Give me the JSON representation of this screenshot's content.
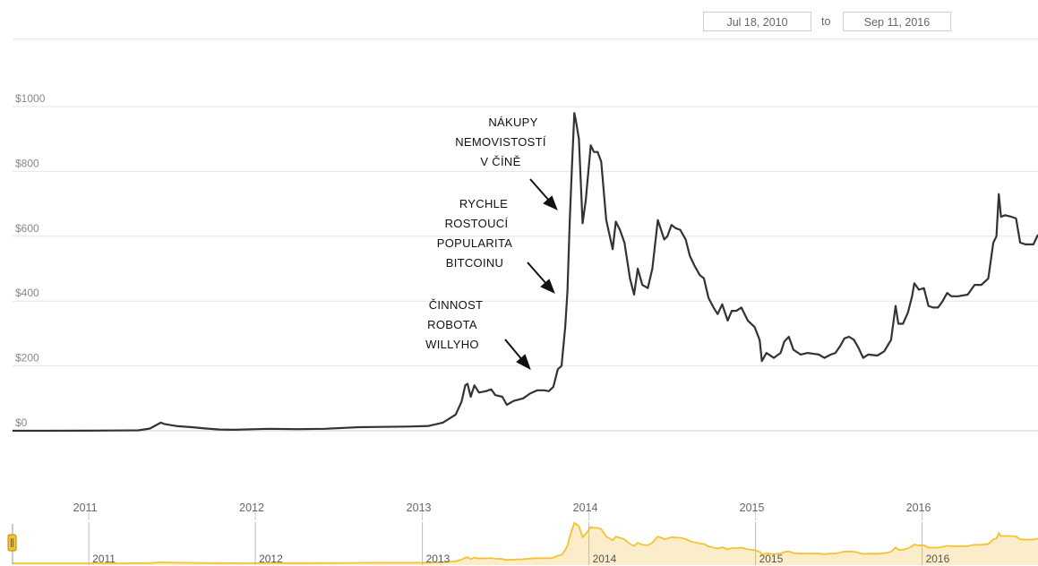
{
  "range": {
    "start": "Jul 18, 2010",
    "to": "to",
    "end": "Sep 11, 2016"
  },
  "colors": {
    "line": "#333333",
    "navigator": "#f5c233",
    "navigator_fill": "#fbedc9",
    "grid": "#e6e6e6",
    "annotation": "#111111"
  },
  "annotations": {
    "china": [
      "NÁKUPY",
      "NEMOVISTOSTÍ",
      "V ČÍNĚ"
    ],
    "popularity": [
      "RYCHLE",
      "ROSTOUCÍ",
      "POPULARITA",
      "BITCOINU"
    ],
    "willy": [
      "ČINNOST",
      "ROBOTA",
      "WILLYHO"
    ]
  },
  "chart_data": {
    "type": "line",
    "title": "",
    "xlabel": "",
    "ylabel": "",
    "ylim": [
      0,
      1000
    ],
    "yticks": [
      "$0",
      "$200",
      "$400",
      "$600",
      "$800",
      "$1000"
    ],
    "yticks_values": [
      0,
      200,
      400,
      600,
      800,
      1000
    ],
    "xticks": [
      "2011",
      "2012",
      "2013",
      "2014",
      "2015",
      "2016"
    ],
    "grid": true,
    "series": [
      {
        "points": [
          [
            "2010-07-18",
            0.1
          ],
          [
            "2010-10-01",
            0.1
          ],
          [
            "2011-01-01",
            0.3
          ],
          [
            "2011-03-01",
            0.9
          ],
          [
            "2011-04-20",
            1.5
          ],
          [
            "2011-05-15",
            7
          ],
          [
            "2011-06-08",
            25
          ],
          [
            "2011-06-15",
            21
          ],
          [
            "2011-07-15",
            14
          ],
          [
            "2011-08-15",
            11
          ],
          [
            "2011-09-15",
            7
          ],
          [
            "2011-10-15",
            4
          ],
          [
            "2011-11-15",
            3
          ],
          [
            "2012-01-01",
            5
          ],
          [
            "2012-02-01",
            6
          ],
          [
            "2012-04-01",
            5
          ],
          [
            "2012-06-01",
            6
          ],
          [
            "2012-08-15",
            11
          ],
          [
            "2012-10-01",
            12
          ],
          [
            "2012-12-01",
            13
          ],
          [
            "2013-01-15",
            15
          ],
          [
            "2013-02-15",
            25
          ],
          [
            "2013-03-15",
            50
          ],
          [
            "2013-03-28",
            90
          ],
          [
            "2013-04-05",
            140
          ],
          [
            "2013-04-10",
            145
          ],
          [
            "2013-04-17",
            105
          ],
          [
            "2013-04-25",
            140
          ],
          [
            "2013-05-05",
            118
          ],
          [
            "2013-05-20",
            122
          ],
          [
            "2013-06-01",
            128
          ],
          [
            "2013-06-10",
            110
          ],
          [
            "2013-06-25",
            105
          ],
          [
            "2013-07-05",
            80
          ],
          [
            "2013-07-20",
            92
          ],
          [
            "2013-08-10",
            100
          ],
          [
            "2013-08-25",
            115
          ],
          [
            "2013-09-10",
            125
          ],
          [
            "2013-09-25",
            125
          ],
          [
            "2013-10-05",
            122
          ],
          [
            "2013-10-15",
            135
          ],
          [
            "2013-10-25",
            190
          ],
          [
            "2013-11-02",
            200
          ],
          [
            "2013-11-10",
            320
          ],
          [
            "2013-11-15",
            430
          ],
          [
            "2013-11-20",
            650
          ],
          [
            "2013-11-25",
            820
          ],
          [
            "2013-11-30",
            980
          ],
          [
            "2013-12-03",
            960
          ],
          [
            "2013-12-10",
            900
          ],
          [
            "2013-12-18",
            640
          ],
          [
            "2013-12-25",
            710
          ],
          [
            "2014-01-05",
            880
          ],
          [
            "2014-01-12",
            860
          ],
          [
            "2014-01-20",
            860
          ],
          [
            "2014-01-28",
            830
          ],
          [
            "2014-02-08",
            650
          ],
          [
            "2014-02-22",
            560
          ],
          [
            "2014-03-01",
            645
          ],
          [
            "2014-03-10",
            620
          ],
          [
            "2014-03-20",
            580
          ],
          [
            "2014-04-01",
            470
          ],
          [
            "2014-04-10",
            420
          ],
          [
            "2014-04-18",
            500
          ],
          [
            "2014-04-28",
            450
          ],
          [
            "2014-05-10",
            440
          ],
          [
            "2014-05-20",
            500
          ],
          [
            "2014-06-01",
            650
          ],
          [
            "2014-06-08",
            620
          ],
          [
            "2014-06-15",
            590
          ],
          [
            "2014-06-22",
            600
          ],
          [
            "2014-07-01",
            635
          ],
          [
            "2014-07-10",
            625
          ],
          [
            "2014-07-20",
            620
          ],
          [
            "2014-08-01",
            590
          ],
          [
            "2014-08-10",
            540
          ],
          [
            "2014-08-20",
            510
          ],
          [
            "2014-09-01",
            480
          ],
          [
            "2014-09-10",
            470
          ],
          [
            "2014-09-20",
            410
          ],
          [
            "2014-10-01",
            380
          ],
          [
            "2014-10-10",
            360
          ],
          [
            "2014-10-20",
            390
          ],
          [
            "2014-11-01",
            340
          ],
          [
            "2014-11-10",
            370
          ],
          [
            "2014-11-20",
            370
          ],
          [
            "2014-12-01",
            380
          ],
          [
            "2014-12-15",
            340
          ],
          [
            "2014-12-30",
            320
          ],
          [
            "2015-01-10",
            280
          ],
          [
            "2015-01-15",
            215
          ],
          [
            "2015-01-25",
            240
          ],
          [
            "2015-02-10",
            225
          ],
          [
            "2015-02-25",
            240
          ],
          [
            "2015-03-05",
            275
          ],
          [
            "2015-03-15",
            290
          ],
          [
            "2015-03-25",
            250
          ],
          [
            "2015-04-10",
            235
          ],
          [
            "2015-04-25",
            240
          ],
          [
            "2015-05-05",
            238
          ],
          [
            "2015-05-20",
            235
          ],
          [
            "2015-06-01",
            225
          ],
          [
            "2015-06-15",
            235
          ],
          [
            "2015-06-25",
            240
          ],
          [
            "2015-07-05",
            260
          ],
          [
            "2015-07-15",
            285
          ],
          [
            "2015-07-25",
            290
          ],
          [
            "2015-08-05",
            280
          ],
          [
            "2015-08-15",
            255
          ],
          [
            "2015-08-25",
            225
          ],
          [
            "2015-09-05",
            235
          ],
          [
            "2015-09-25",
            232
          ],
          [
            "2015-10-10",
            245
          ],
          [
            "2015-10-25",
            280
          ],
          [
            "2015-11-04",
            385
          ],
          [
            "2015-11-10",
            330
          ],
          [
            "2015-11-20",
            330
          ],
          [
            "2015-12-01",
            365
          ],
          [
            "2015-12-10",
            415
          ],
          [
            "2015-12-15",
            455
          ],
          [
            "2015-12-25",
            435
          ],
          [
            "2016-01-05",
            440
          ],
          [
            "2016-01-15",
            385
          ],
          [
            "2016-01-25",
            380
          ],
          [
            "2016-02-05",
            380
          ],
          [
            "2016-02-15",
            400
          ],
          [
            "2016-02-25",
            425
          ],
          [
            "2016-03-05",
            415
          ],
          [
            "2016-03-20",
            415
          ],
          [
            "2016-04-10",
            420
          ],
          [
            "2016-04-25",
            450
          ],
          [
            "2016-05-10",
            450
          ],
          [
            "2016-05-25",
            470
          ],
          [
            "2016-06-05",
            580
          ],
          [
            "2016-06-12",
            600
          ],
          [
            "2016-06-17",
            730
          ],
          [
            "2016-06-22",
            660
          ],
          [
            "2016-07-01",
            665
          ],
          [
            "2016-07-15",
            660
          ],
          [
            "2016-07-25",
            655
          ],
          [
            "2016-08-03",
            580
          ],
          [
            "2016-08-15",
            575
          ],
          [
            "2016-09-01",
            575
          ],
          [
            "2016-09-11",
            605
          ]
        ]
      }
    ]
  }
}
